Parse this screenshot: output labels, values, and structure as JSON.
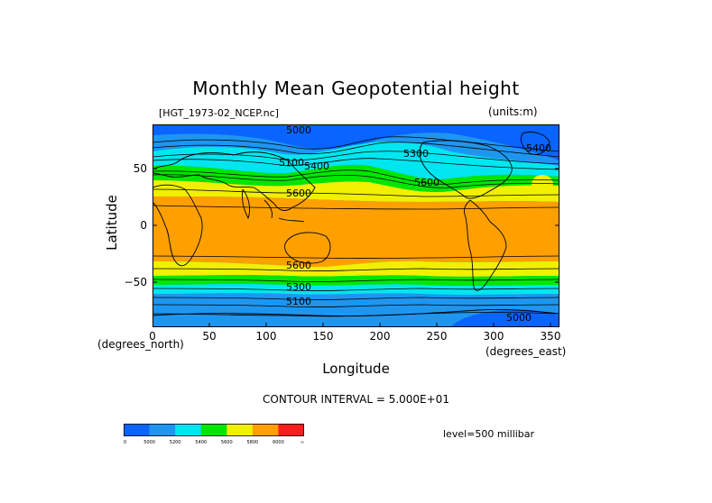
{
  "figure": {
    "title": "Monthly Mean Geopotential height",
    "file_label": "[HGT_1973-02_NCEP.nc]",
    "units_label": "(units:m)",
    "x_axis_label": "Longitude",
    "y_axis_label": "Latitude",
    "x_units_left": "(degrees_north)",
    "x_units_right": "(degrees_east)",
    "contour_interval": "CONTOUR INTERVAL = 5.000E+01",
    "level_label": "level=500 millibar",
    "x_ticks": [
      "0",
      "50",
      "100",
      "150",
      "200",
      "250",
      "300",
      "350"
    ],
    "y_ticks": [
      "50",
      "0",
      "−50"
    ],
    "contour_labels": [
      "5000",
      "5100",
      "5400",
      "5600",
      "5300",
      "5600",
      "5400",
      "5600",
      "5300",
      "5000",
      "5100"
    ]
  },
  "colorbar": {
    "tick_labels": [
      "0",
      "5000",
      "5200",
      "5400",
      "5600",
      "5800",
      "6000",
      "∞"
    ],
    "colors": [
      "#0a64ff",
      "#1e96f0",
      "#00e6f0",
      "#00e600",
      "#f0f000",
      "#ffa000",
      "#ff1e1e"
    ]
  },
  "colors": {
    "blue": "#0a64ff",
    "light_blue": "#1e96f0",
    "cyan": "#00e6f0",
    "green": "#00e600",
    "yellow": "#f0f000",
    "orange": "#ffa000",
    "red": "#ff1e1e"
  }
}
